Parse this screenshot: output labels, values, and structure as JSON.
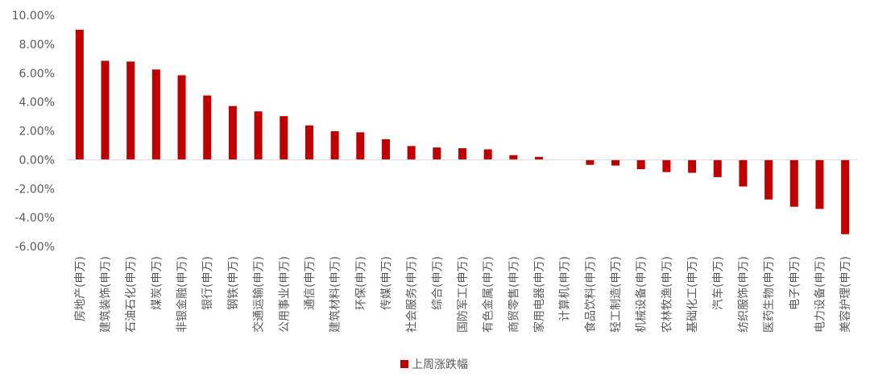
{
  "chart_data": {
    "type": "bar",
    "categories": [
      "房地产(申万)",
      "建筑装饰(申万)",
      "石油石化(申万)",
      "煤炭(申万)",
      "非银金融(申万)",
      "银行(申万)",
      "钢铁(申万)",
      "交通运输(申万)",
      "公用事业(申万)",
      "通信(申万)",
      "建筑材料(申万)",
      "环保(申万)",
      "传媒(申万)",
      "社会服务(申万)",
      "综合(申万)",
      "国防军工(申万)",
      "有色金属(申万)",
      "商贸零售(申万)",
      "家用电器(申万)",
      "计算机(申万)",
      "食品饮料(申万)",
      "轻工制造(申万)",
      "机械设备(申万)",
      "农林牧渔(申万)",
      "基础化工(申万)",
      "汽车(申万)",
      "纺织服饰(申万)",
      "医药生物(申万)",
      "电子(申万)",
      "电力设备(申万)",
      "美容护理(申万)"
    ],
    "series": [
      {
        "name": "上周涨跌幅",
        "color": "#C00000",
        "values": [
          9.0,
          6.85,
          6.8,
          6.25,
          5.85,
          4.45,
          3.72,
          3.35,
          3.02,
          2.38,
          1.98,
          1.9,
          1.42,
          0.95,
          0.85,
          0.8,
          0.72,
          0.32,
          0.2,
          0.0,
          -0.35,
          -0.4,
          -0.65,
          -0.85,
          -0.9,
          -1.2,
          -1.85,
          -2.75,
          -3.25,
          -3.4,
          -5.15
        ]
      }
    ],
    "yticks": [
      "10.00%",
      "8.00%",
      "6.00%",
      "4.00%",
      "2.00%",
      "0.00%",
      "-2.00%",
      "-4.00%",
      "-6.00%"
    ],
    "ylim": [
      -6,
      10
    ],
    "grid": false,
    "legend_position": "bottom-center"
  }
}
